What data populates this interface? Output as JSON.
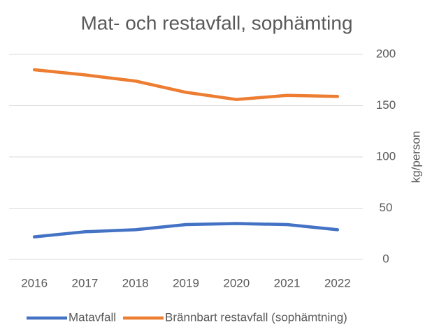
{
  "chart_data": {
    "type": "line",
    "title": "Mat- och restavfall, sophämting",
    "y_label": "kg/person",
    "categories": [
      "2016",
      "2017",
      "2018",
      "2019",
      "2020",
      "2021",
      "2022"
    ],
    "series": [
      {
        "name": "Matavfall",
        "color": "#4472c4",
        "values": [
          22,
          27,
          29,
          34,
          35,
          34,
          29
        ]
      },
      {
        "name": "Brännbart restavfall (sophämtning)",
        "color": "#ed7d31",
        "values": [
          185,
          180,
          174,
          163,
          156,
          160,
          159
        ]
      }
    ],
    "ylim": [
      0,
      200
    ],
    "yticks": [
      0,
      50,
      100,
      150,
      200
    ],
    "grid": true,
    "legend": "bottom"
  }
}
